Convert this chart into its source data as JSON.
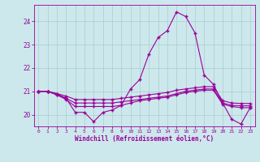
{
  "xlabel": "Windchill (Refroidissement éolien,°C)",
  "background_color": "#cce8ec",
  "line_color": "#990099",
  "grid_color": "#aacccc",
  "hours": [
    0,
    1,
    2,
    3,
    4,
    5,
    6,
    7,
    8,
    9,
    10,
    11,
    12,
    13,
    14,
    15,
    16,
    17,
    18,
    19,
    20,
    21,
    22,
    23
  ],
  "series1": [
    21.0,
    21.0,
    20.9,
    20.7,
    20.1,
    20.1,
    19.7,
    20.1,
    20.2,
    20.4,
    21.1,
    21.5,
    22.6,
    23.3,
    23.6,
    24.4,
    24.2,
    23.5,
    21.7,
    21.3,
    20.5,
    19.8,
    19.6,
    20.3
  ],
  "series2": [
    21.0,
    21.0,
    20.85,
    20.65,
    20.35,
    20.35,
    20.35,
    20.35,
    20.35,
    20.4,
    20.5,
    20.6,
    20.65,
    20.7,
    20.75,
    20.85,
    20.95,
    21.0,
    21.05,
    21.05,
    20.45,
    20.35,
    20.3,
    20.3
  ],
  "series3": [
    21.0,
    21.0,
    20.85,
    20.7,
    20.5,
    20.5,
    20.5,
    20.5,
    20.5,
    20.55,
    20.6,
    20.65,
    20.7,
    20.75,
    20.8,
    20.9,
    21.0,
    21.05,
    21.1,
    21.1,
    20.5,
    20.4,
    20.38,
    20.38
  ],
  "series4": [
    21.0,
    21.0,
    20.9,
    20.8,
    20.65,
    20.65,
    20.65,
    20.65,
    20.65,
    20.7,
    20.75,
    20.8,
    20.85,
    20.9,
    20.95,
    21.05,
    21.1,
    21.15,
    21.2,
    21.2,
    20.6,
    20.5,
    20.48,
    20.48
  ],
  "ylim": [
    19.5,
    24.7
  ],
  "yticks": [
    20,
    21,
    22,
    23,
    24
  ],
  "marker": "+"
}
